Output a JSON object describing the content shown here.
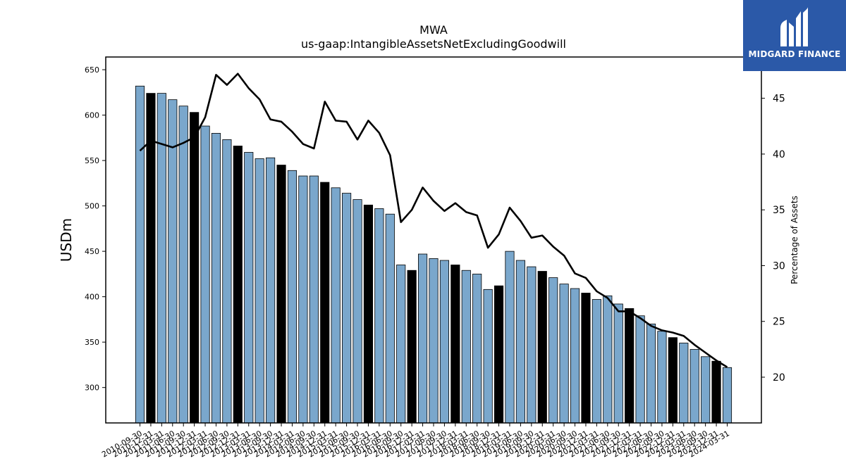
{
  "brand": {
    "name": "MIDGARD FINANCE",
    "bg_color": "#2b59a8"
  },
  "chart_data": {
    "type": "bar",
    "title": "MWA",
    "subtitle": "us-gaap:IntangibleAssetsNetExcludingGoodwill",
    "ylabel": "USDm",
    "y2label": "Percentage of Assets",
    "ylim": [
      261,
      664
    ],
    "y2lim": [
      15.9,
      48.7
    ],
    "yticks": [
      300,
      350,
      400,
      450,
      500,
      550,
      600,
      650
    ],
    "y2ticks": [
      20,
      25,
      30,
      35,
      40,
      45
    ],
    "colors": {
      "bar": "#7aa7cc",
      "bar_q4": "#000000",
      "line": "#000000"
    },
    "categories": [
      "2010-09-30",
      "2010-12-31",
      "2011-03-31",
      "2011-06-30",
      "2011-09-30",
      "2011-12-31",
      "2012-03-31",
      "2012-06-30",
      "2012-09-30",
      "2012-12-31",
      "2013-03-31",
      "2013-06-30",
      "2013-09-30",
      "2013-12-31",
      "2014-03-31",
      "2014-06-30",
      "2014-09-30",
      "2014-12-31",
      "2015-03-31",
      "2015-06-30",
      "2015-09-30",
      "2015-12-31",
      "2016-03-31",
      "2016-06-30",
      "2016-09-30",
      "2016-12-31",
      "2017-03-31",
      "2017-06-30",
      "2017-09-30",
      "2017-12-31",
      "2018-03-31",
      "2018-06-30",
      "2018-09-30",
      "2018-12-31",
      "2019-03-31",
      "2019-06-30",
      "2019-09-30",
      "2019-12-31",
      "2020-03-31",
      "2020-06-30",
      "2020-09-30",
      "2020-12-31",
      "2021-03-31",
      "2021-06-30",
      "2021-09-30",
      "2021-12-31",
      "2022-03-31",
      "2022-06-30",
      "2022-09-30",
      "2022-12-31",
      "2023-03-31",
      "2023-06-30",
      "2023-09-30",
      "2023-12-31",
      "2024-03-31"
    ],
    "values": [
      632,
      624,
      624,
      617,
      610,
      603,
      588,
      580,
      573,
      566,
      559,
      552,
      553,
      545,
      539,
      533,
      533,
      526,
      520,
      514,
      507,
      501,
      497,
      491,
      435,
      429,
      447,
      442,
      440,
      435,
      429,
      425,
      408,
      412,
      450,
      440,
      433,
      428,
      421,
      414,
      409,
      404,
      397,
      401,
      392,
      387,
      379,
      370,
      362,
      355,
      349,
      342,
      334,
      329,
      322
    ],
    "highlight": [
      false,
      true,
      false,
      false,
      false,
      true,
      false,
      false,
      false,
      true,
      false,
      false,
      false,
      true,
      false,
      false,
      false,
      true,
      false,
      false,
      false,
      true,
      false,
      false,
      false,
      true,
      false,
      false,
      false,
      true,
      false,
      false,
      false,
      true,
      false,
      false,
      false,
      true,
      false,
      false,
      false,
      true,
      false,
      false,
      false,
      true,
      false,
      false,
      false,
      true,
      false,
      false,
      false,
      true,
      false
    ],
    "series": [
      {
        "name": "Percentage of Assets",
        "values": [
          40.3,
          41.2,
          40.9,
          40.6,
          41.0,
          41.5,
          43.3,
          47.1,
          46.2,
          47.2,
          45.9,
          44.9,
          43.1,
          42.9,
          42.0,
          40.9,
          40.5,
          44.7,
          43.0,
          42.9,
          41.3,
          43.0,
          41.9,
          39.9,
          33.9,
          35.0,
          37.0,
          35.8,
          34.9,
          35.6,
          34.8,
          34.5,
          31.6,
          32.8,
          35.2,
          34.0,
          32.5,
          32.7,
          31.7,
          30.9,
          29.3,
          28.9,
          27.7,
          27.1,
          25.9,
          25.9,
          25.3,
          24.6,
          24.2,
          24.0,
          23.7,
          22.9,
          22.2,
          21.5,
          20.9
        ]
      }
    ]
  }
}
